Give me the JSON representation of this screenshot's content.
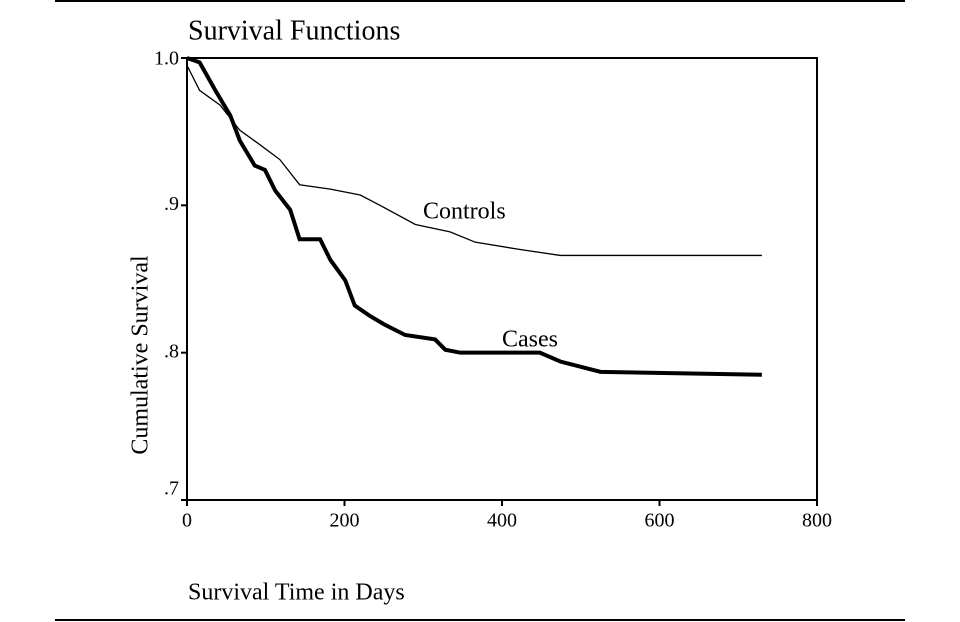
{
  "chart_data": {
    "type": "line",
    "title": "Survival Functions",
    "x_label": "Survival Time in Days",
    "y_label": "Cumulative Survival",
    "xlim": [
      0,
      800
    ],
    "xticks": [
      0,
      200,
      400,
      600,
      800
    ],
    "ylim": [
      0.7,
      1.0
    ],
    "yticks": [
      {
        "value": 0.7,
        "label": ".7"
      },
      {
        "value": 0.8,
        "label": ".8"
      },
      {
        "value": 0.9,
        "label": ".9"
      },
      {
        "value": 1.0,
        "label": "1.0"
      }
    ],
    "grid": false,
    "annotations": [
      "Controls",
      "Cases"
    ],
    "series": [
      {
        "name": "Controls",
        "color": "#000000",
        "x": [
          0,
          16,
          42,
          67,
          93,
          118,
          143,
          182,
          220,
          245,
          290,
          334,
          366,
          423,
          474,
          730
        ],
        "values": [
          0.995,
          0.978,
          0.968,
          0.951,
          0.941,
          0.931,
          0.914,
          0.911,
          0.907,
          0.9,
          0.887,
          0.882,
          0.875,
          0.87,
          0.866,
          0.866
        ]
      },
      {
        "name": "Cases",
        "color": "#000000",
        "x": [
          0,
          16,
          36,
          55,
          67,
          86,
          99,
          112,
          131,
          143,
          169,
          182,
          201,
          213,
          232,
          251,
          277,
          315,
          328,
          347,
          448,
          474,
          525,
          730
        ],
        "values": [
          1.0,
          0.997,
          0.978,
          0.961,
          0.944,
          0.927,
          0.924,
          0.91,
          0.897,
          0.877,
          0.877,
          0.863,
          0.849,
          0.832,
          0.825,
          0.819,
          0.812,
          0.809,
          0.802,
          0.8,
          0.8,
          0.794,
          0.787,
          0.785
        ]
      }
    ]
  }
}
